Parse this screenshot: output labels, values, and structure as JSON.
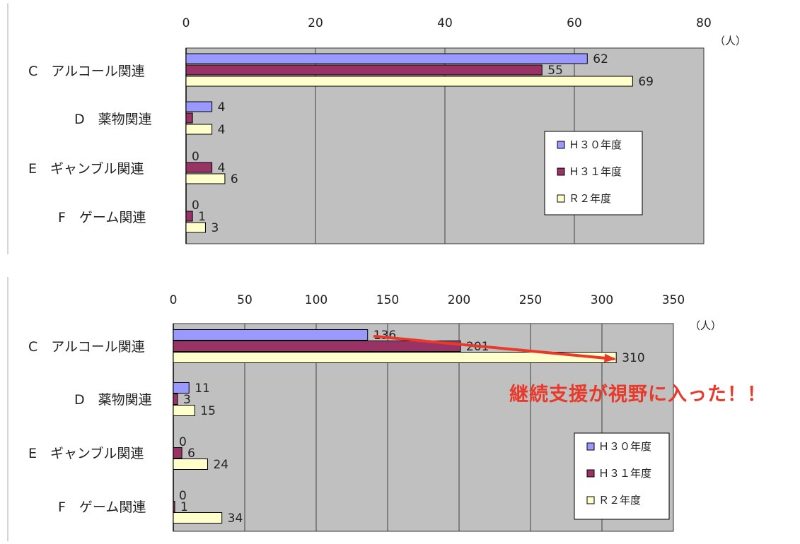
{
  "chart_data": [
    {
      "type": "bar",
      "orientation": "horizontal",
      "unit_label": "（人）",
      "xlim": [
        0,
        80
      ],
      "x_ticks": [
        0,
        20,
        40,
        60,
        80
      ],
      "grid": true,
      "legend_position": "right",
      "categories": [
        "C　アルコール関連",
        "D　薬物関連",
        "E　ギャンブル関連",
        "F　ゲーム関連"
      ],
      "series": [
        {
          "name": "Ｈ３０年度",
          "values": [
            62,
            4,
            0,
            0
          ],
          "color": "#9999ff"
        },
        {
          "name": "Ｈ３１年度",
          "values": [
            55,
            1,
            4,
            1
          ],
          "color": "#993366"
        },
        {
          "name": "Ｒ２年度",
          "values": [
            69,
            4,
            6,
            3
          ],
          "color": "#ffffcc"
        }
      ],
      "data_labels": [
        [
          "62",
          "4",
          "0",
          "0"
        ],
        [
          "55",
          "",
          "4",
          "1"
        ],
        [
          "69",
          "4",
          "6",
          "3"
        ]
      ]
    },
    {
      "type": "bar",
      "orientation": "horizontal",
      "unit_label": "（人）",
      "xlim": [
        0,
        350
      ],
      "x_ticks": [
        0,
        50,
        100,
        150,
        200,
        250,
        300,
        350
      ],
      "grid": true,
      "legend_position": "right",
      "categories": [
        "C　アルコール関連",
        "D　薬物関連",
        "E　ギャンブル関連",
        "F　ゲーム関連"
      ],
      "series": [
        {
          "name": "Ｈ３０年度",
          "values": [
            136,
            11,
            0,
            0
          ],
          "color": "#9999ff"
        },
        {
          "name": "Ｈ３１年度",
          "values": [
            201,
            3,
            6,
            1
          ],
          "color": "#993366"
        },
        {
          "name": "Ｒ２年度",
          "values": [
            310,
            15,
            24,
            34
          ],
          "color": "#ffffcc"
        }
      ],
      "data_labels": [
        [
          "136",
          "11",
          "0",
          "0"
        ],
        [
          "201",
          "3",
          "6",
          "1"
        ],
        [
          "310",
          "15",
          "24",
          "34"
        ]
      ]
    }
  ],
  "annotation": {
    "text": "継続支援が視野に入った！！",
    "color": "#e8392a"
  },
  "colors": {
    "plot_bg": "#c0c0c0",
    "grid": "#404040",
    "bar_outline": "#000000"
  }
}
